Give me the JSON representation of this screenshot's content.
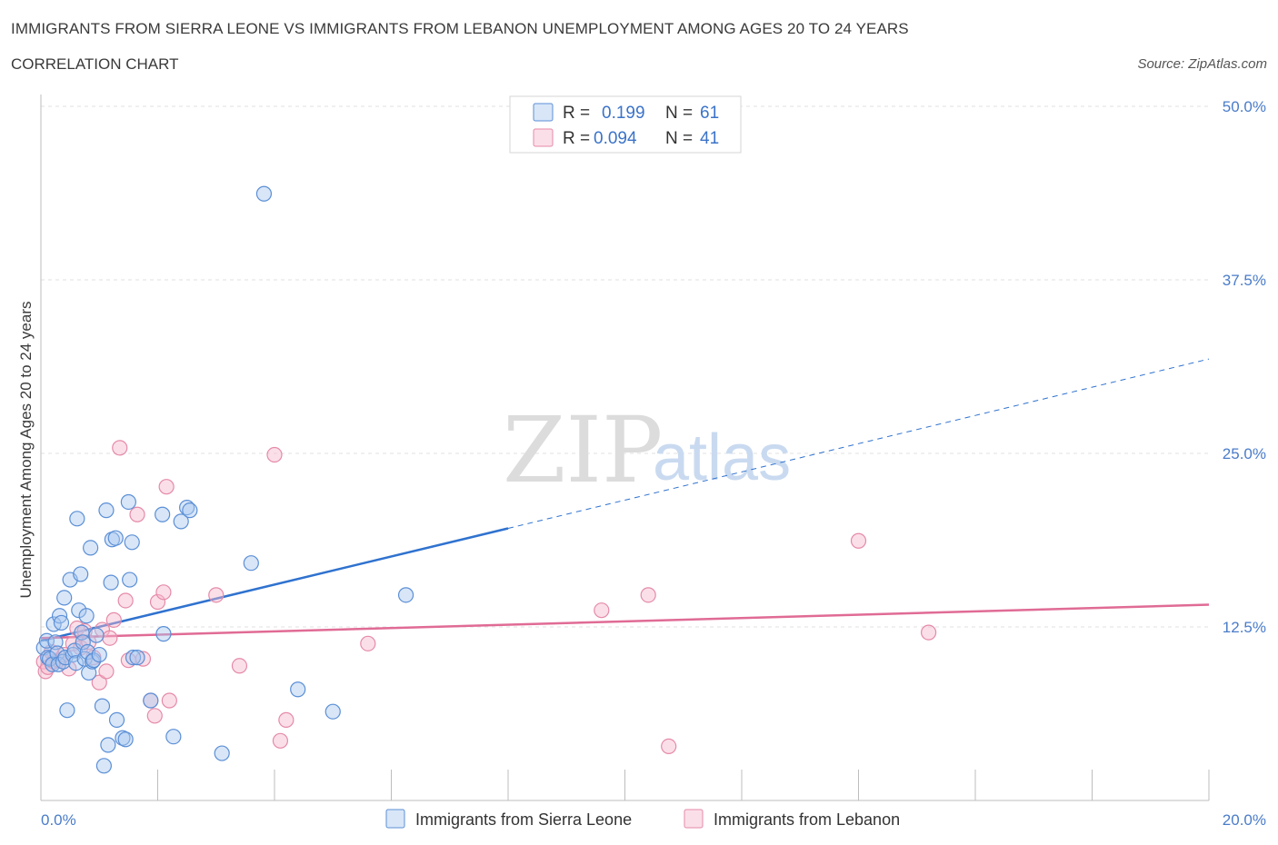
{
  "title": "IMMIGRANTS FROM SIERRA LEONE VS IMMIGRANTS FROM LEBANON UNEMPLOYMENT AMONG AGES 20 TO 24 YEARS",
  "subtitle": "CORRELATION CHART",
  "source": "Source: ZipAtlas.com",
  "watermark": {
    "zip": "ZIP",
    "atlas": "atlas"
  },
  "legend": {
    "r_label": "R =",
    "n_label": "N =",
    "rows": [
      {
        "name": "Immigrants from Sierra Leone",
        "r": "0.199",
        "n": "61",
        "color": "#a8c8f0"
      },
      {
        "name": "Immigrants from Lebanon",
        "r": "0.094",
        "n": "41",
        "color": "#f6b8cc"
      }
    ]
  },
  "colors": {
    "sierra_fill": "rgba(168,200,240,0.45)",
    "sierra_stroke": "#5b8fd6",
    "lebanon_fill": "rgba(246,184,204,0.45)",
    "lebanon_stroke": "#e58aa8",
    "sierra_line": "#2f72cf",
    "lebanon_line": "#e06b95",
    "grid": "#e2e2e2",
    "tick_text": "#4a7cc9"
  },
  "chart_data": {
    "type": "scatter",
    "title": "IMMIGRANTS FROM SIERRA LEONE VS IMMIGRANTS FROM LEBANON UNEMPLOYMENT AMONG AGES 20 TO 24 YEARS",
    "xlabel": "",
    "ylabel": "Unemployment Among Ages 20 to 24 years",
    "xlim": [
      0,
      20
    ],
    "ylim": [
      0,
      50
    ],
    "x_tick_labels": [
      "0.0%",
      "20.0%"
    ],
    "y_ticks": [
      12.5,
      25.0,
      37.5,
      50.0
    ],
    "y_tick_labels": [
      "12.5%",
      "25.0%",
      "37.5%",
      "50.0%"
    ],
    "series": [
      {
        "name": "Immigrants from Sierra Leone",
        "r": 0.199,
        "n": 61,
        "trend": {
          "x0": 0,
          "y0": 11.5,
          "x1": 8,
          "y1": 19.6,
          "x_dash_end": 20,
          "y_dash_end": 31.8
        },
        "points": [
          [
            0.05,
            11.0
          ],
          [
            0.1,
            11.5
          ],
          [
            0.12,
            10.3
          ],
          [
            0.15,
            10.2
          ],
          [
            0.2,
            9.8
          ],
          [
            0.22,
            12.7
          ],
          [
            0.25,
            11.4
          ],
          [
            0.28,
            10.6
          ],
          [
            0.3,
            9.8
          ],
          [
            0.32,
            13.3
          ],
          [
            0.35,
            12.8
          ],
          [
            0.38,
            10.0
          ],
          [
            0.4,
            14.6
          ],
          [
            0.42,
            10.3
          ],
          [
            0.45,
            6.5
          ],
          [
            0.5,
            15.9
          ],
          [
            0.55,
            10.5
          ],
          [
            0.58,
            10.8
          ],
          [
            0.6,
            9.9
          ],
          [
            0.62,
            20.3
          ],
          [
            0.65,
            13.7
          ],
          [
            0.68,
            16.3
          ],
          [
            0.7,
            12.1
          ],
          [
            0.72,
            11.4
          ],
          [
            0.75,
            10.2
          ],
          [
            0.78,
            13.3
          ],
          [
            0.8,
            10.7
          ],
          [
            0.82,
            9.2
          ],
          [
            0.85,
            18.2
          ],
          [
            0.88,
            10.0
          ],
          [
            0.9,
            10.1
          ],
          [
            0.95,
            11.9
          ],
          [
            1.0,
            10.5
          ],
          [
            1.05,
            6.8
          ],
          [
            1.08,
            2.5
          ],
          [
            1.12,
            20.9
          ],
          [
            1.15,
            4.0
          ],
          [
            1.2,
            15.7
          ],
          [
            1.22,
            18.8
          ],
          [
            1.28,
            18.9
          ],
          [
            1.3,
            5.8
          ],
          [
            1.4,
            4.5
          ],
          [
            1.45,
            4.4
          ],
          [
            1.5,
            21.5
          ],
          [
            1.52,
            15.9
          ],
          [
            1.56,
            18.6
          ],
          [
            1.58,
            10.3
          ],
          [
            1.65,
            10.3
          ],
          [
            1.88,
            7.2
          ],
          [
            2.08,
            20.6
          ],
          [
            2.1,
            12.0
          ],
          [
            2.27,
            4.6
          ],
          [
            2.4,
            20.1
          ],
          [
            2.5,
            21.1
          ],
          [
            2.55,
            20.9
          ],
          [
            3.1,
            3.4
          ],
          [
            3.6,
            17.1
          ],
          [
            3.82,
            43.7
          ],
          [
            4.4,
            8.0
          ],
          [
            5.0,
            6.4
          ],
          [
            6.25,
            14.8
          ]
        ]
      },
      {
        "name": "Immigrants from Lebanon",
        "r": 0.094,
        "n": 41,
        "trend": {
          "x0": 0,
          "y0": 11.7,
          "x1": 20,
          "y1": 14.1
        },
        "points": [
          [
            0.05,
            10.0
          ],
          [
            0.08,
            9.3
          ],
          [
            0.12,
            9.6
          ],
          [
            0.18,
            10.7
          ],
          [
            0.22,
            10.0
          ],
          [
            0.3,
            10.1
          ],
          [
            0.4,
            10.5
          ],
          [
            0.48,
            9.5
          ],
          [
            0.55,
            11.3
          ],
          [
            0.62,
            12.4
          ],
          [
            0.68,
            11.0
          ],
          [
            0.75,
            12.2
          ],
          [
            0.82,
            11.4
          ],
          [
            0.9,
            10.3
          ],
          [
            1.0,
            8.5
          ],
          [
            1.05,
            12.3
          ],
          [
            1.12,
            9.3
          ],
          [
            1.18,
            11.7
          ],
          [
            1.25,
            13.0
          ],
          [
            1.35,
            25.4
          ],
          [
            1.45,
            14.4
          ],
          [
            1.5,
            10.1
          ],
          [
            1.65,
            20.6
          ],
          [
            1.75,
            10.2
          ],
          [
            1.88,
            7.2
          ],
          [
            1.95,
            6.1
          ],
          [
            2.0,
            14.3
          ],
          [
            2.1,
            15.0
          ],
          [
            2.15,
            22.6
          ],
          [
            2.2,
            7.2
          ],
          [
            3.0,
            14.8
          ],
          [
            3.4,
            9.7
          ],
          [
            4.0,
            24.9
          ],
          [
            4.1,
            4.3
          ],
          [
            4.2,
            5.8
          ],
          [
            5.6,
            11.3
          ],
          [
            9.6,
            13.7
          ],
          [
            10.4,
            14.8
          ],
          [
            10.75,
            3.9
          ],
          [
            14.0,
            18.7
          ],
          [
            15.2,
            12.1
          ]
        ]
      }
    ]
  }
}
